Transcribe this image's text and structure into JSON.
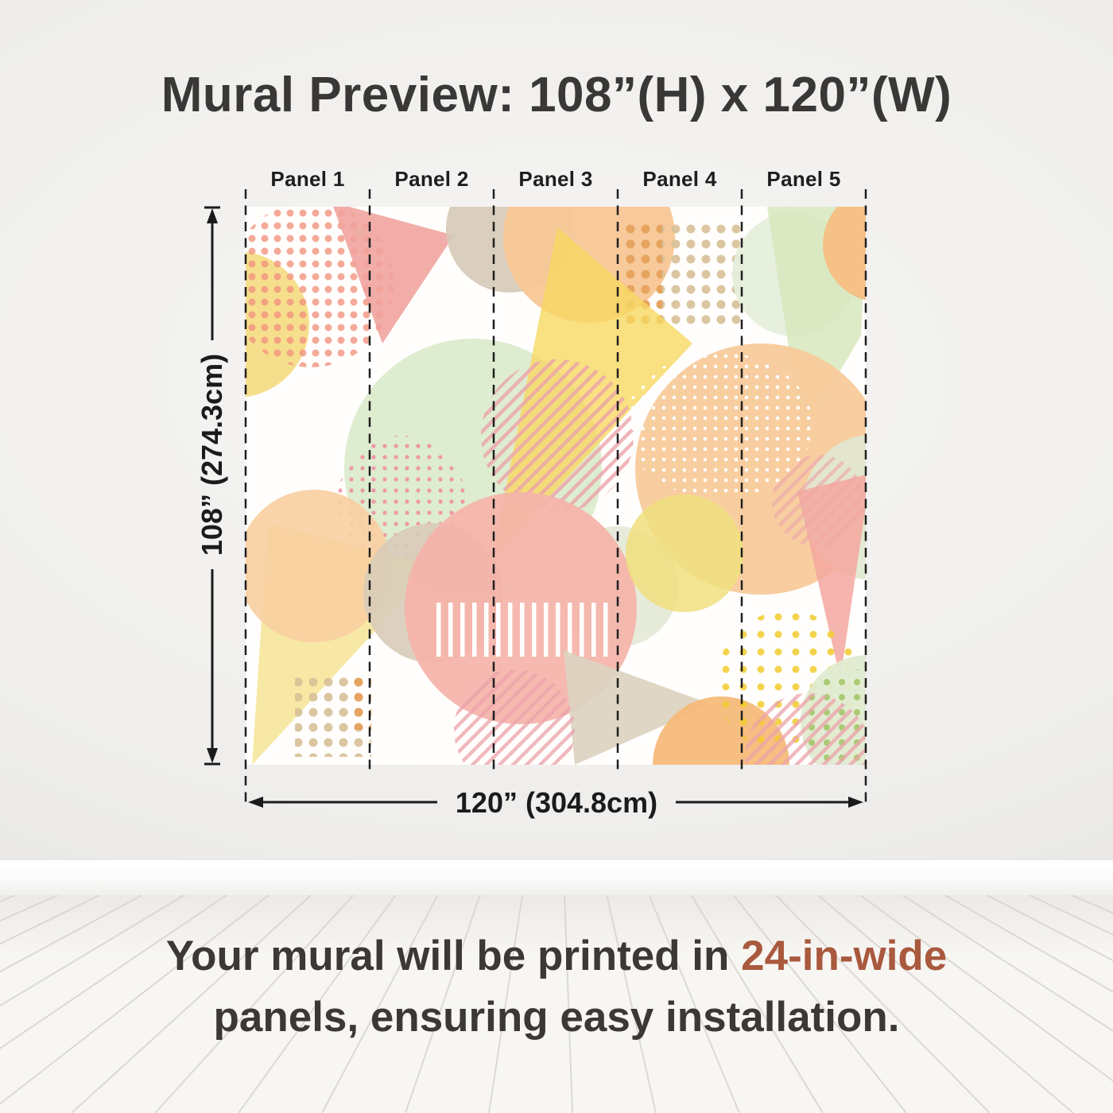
{
  "header": {
    "title": "Mural Preview: 108”(H) x 120”(W)"
  },
  "preview": {
    "panel_labels": [
      "Panel 1",
      "Panel 2",
      "Panel 3",
      "Panel 4",
      "Panel 5"
    ],
    "panel_count": 5,
    "height_dimension": "108” (274.3cm)",
    "width_dimension": "120” (304.8cm)"
  },
  "caption": {
    "line1_prefix": "Your mural will be printed in ",
    "highlight": "24-in-wide",
    "line2": "panels, ensuring easy installation."
  },
  "colors": {
    "accent": "#a9593e",
    "heading_text": "#393837",
    "dimension_lines": "#202020",
    "mural_palette": [
      "#f3937e",
      "#f0a29c",
      "#f4d978",
      "#f7d862",
      "#f8c695",
      "#d6c9b7",
      "#dcebcd",
      "#d7e7bd",
      "#f5b3a9",
      "#f6bb79",
      "#e0ebd1",
      "#eba3ab"
    ]
  }
}
